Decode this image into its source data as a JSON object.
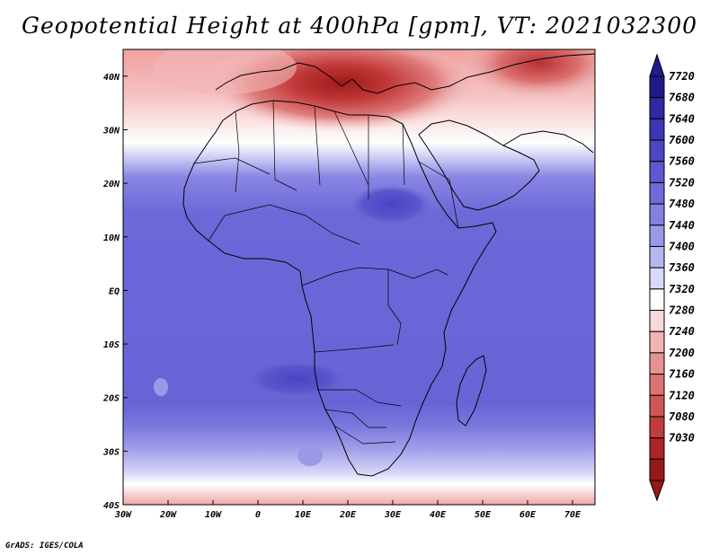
{
  "title": "Geopotential Height at 400hPa [gpm], VT: 2021032300",
  "footer": "GrADS: IGES/COLA",
  "map": {
    "variable": "Geopotential Height",
    "level": "400hPa",
    "units": "gpm",
    "valid_time": "2021032300",
    "lon_range": [
      -30,
      75
    ],
    "lat_range": [
      -40,
      45
    ],
    "lon_ticks": [
      "30W",
      "20W",
      "10W",
      "0",
      "10E",
      "20E",
      "30E",
      "40E",
      "50E",
      "60E",
      "70E"
    ],
    "lon_tick_values": [
      -30,
      -20,
      -10,
      0,
      10,
      20,
      30,
      40,
      50,
      60,
      70
    ],
    "lat_ticks": [
      "40N",
      "30N",
      "20N",
      "10N",
      "EQ",
      "10S",
      "20S",
      "30S",
      "40S"
    ],
    "lat_tick_values": [
      40,
      30,
      20,
      10,
      0,
      -10,
      -20,
      -30,
      -40
    ]
  },
  "colorbar": {
    "labels": [
      "7720",
      "7680",
      "7640",
      "7600",
      "7560",
      "7520",
      "7480",
      "7440",
      "7400",
      "7360",
      "7320",
      "7280",
      "7240",
      "7200",
      "7160",
      "7120",
      "7080",
      "7030"
    ],
    "colors": [
      "#221a8c",
      "#2f2aa0",
      "#3a36b4",
      "#4a46c4",
      "#5c58d0",
      "#6e6ad8",
      "#8480e0",
      "#9c98e8",
      "#b8b6f0",
      "#d8d8f8",
      "#ffffff",
      "#f8d8d8",
      "#f0b4b4",
      "#e69292",
      "#dc7272",
      "#d05656",
      "#c23c3c",
      "#ae2424",
      "#961818"
    ]
  }
}
